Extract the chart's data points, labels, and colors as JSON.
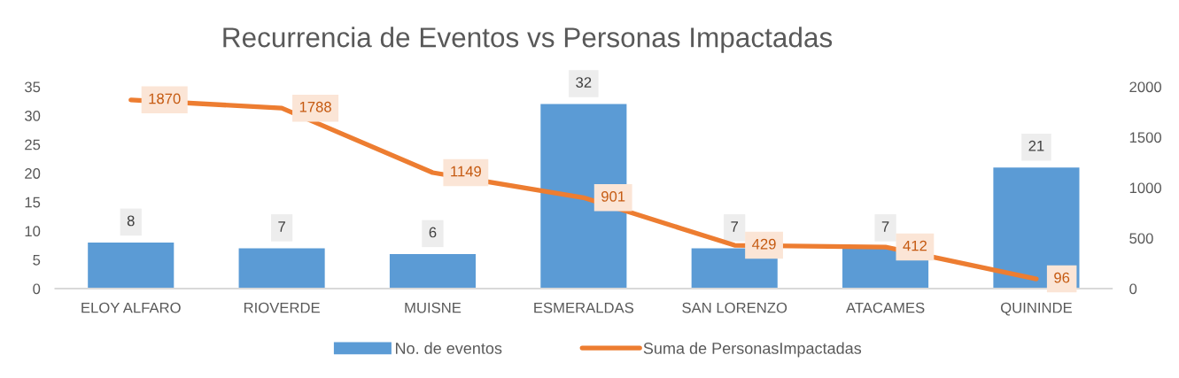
{
  "chart_data": {
    "type": "bar",
    "title": "Recurrencia de Eventos vs Personas Impactadas",
    "categories": [
      "ELOY ALFARO",
      "RIOVERDE",
      "MUISNE",
      "ESMERALDAS",
      "SAN LORENZO",
      "ATACAMES",
      "QUININDE"
    ],
    "series": [
      {
        "name": "No. de eventos",
        "color": "#5b9bd5",
        "values": [
          8,
          7,
          6,
          32,
          7,
          7,
          21
        ]
      },
      {
        "name": "Suma de PersonasImpactadas",
        "type": "line",
        "axis": "y2",
        "color": "#ed7d31",
        "line_style": "solid",
        "values": [
          1870,
          1788,
          1149,
          901,
          429,
          412,
          96
        ]
      }
    ],
    "ylim": [
      0,
      35
    ],
    "yticks": [
      0,
      5,
      10,
      15,
      20,
      25,
      30,
      35
    ],
    "y2lim": [
      0,
      2000
    ],
    "y2ticks": [
      0,
      500,
      1000,
      1500,
      2000
    ],
    "data_labels": true,
    "legend": "bottom",
    "grid": false
  }
}
